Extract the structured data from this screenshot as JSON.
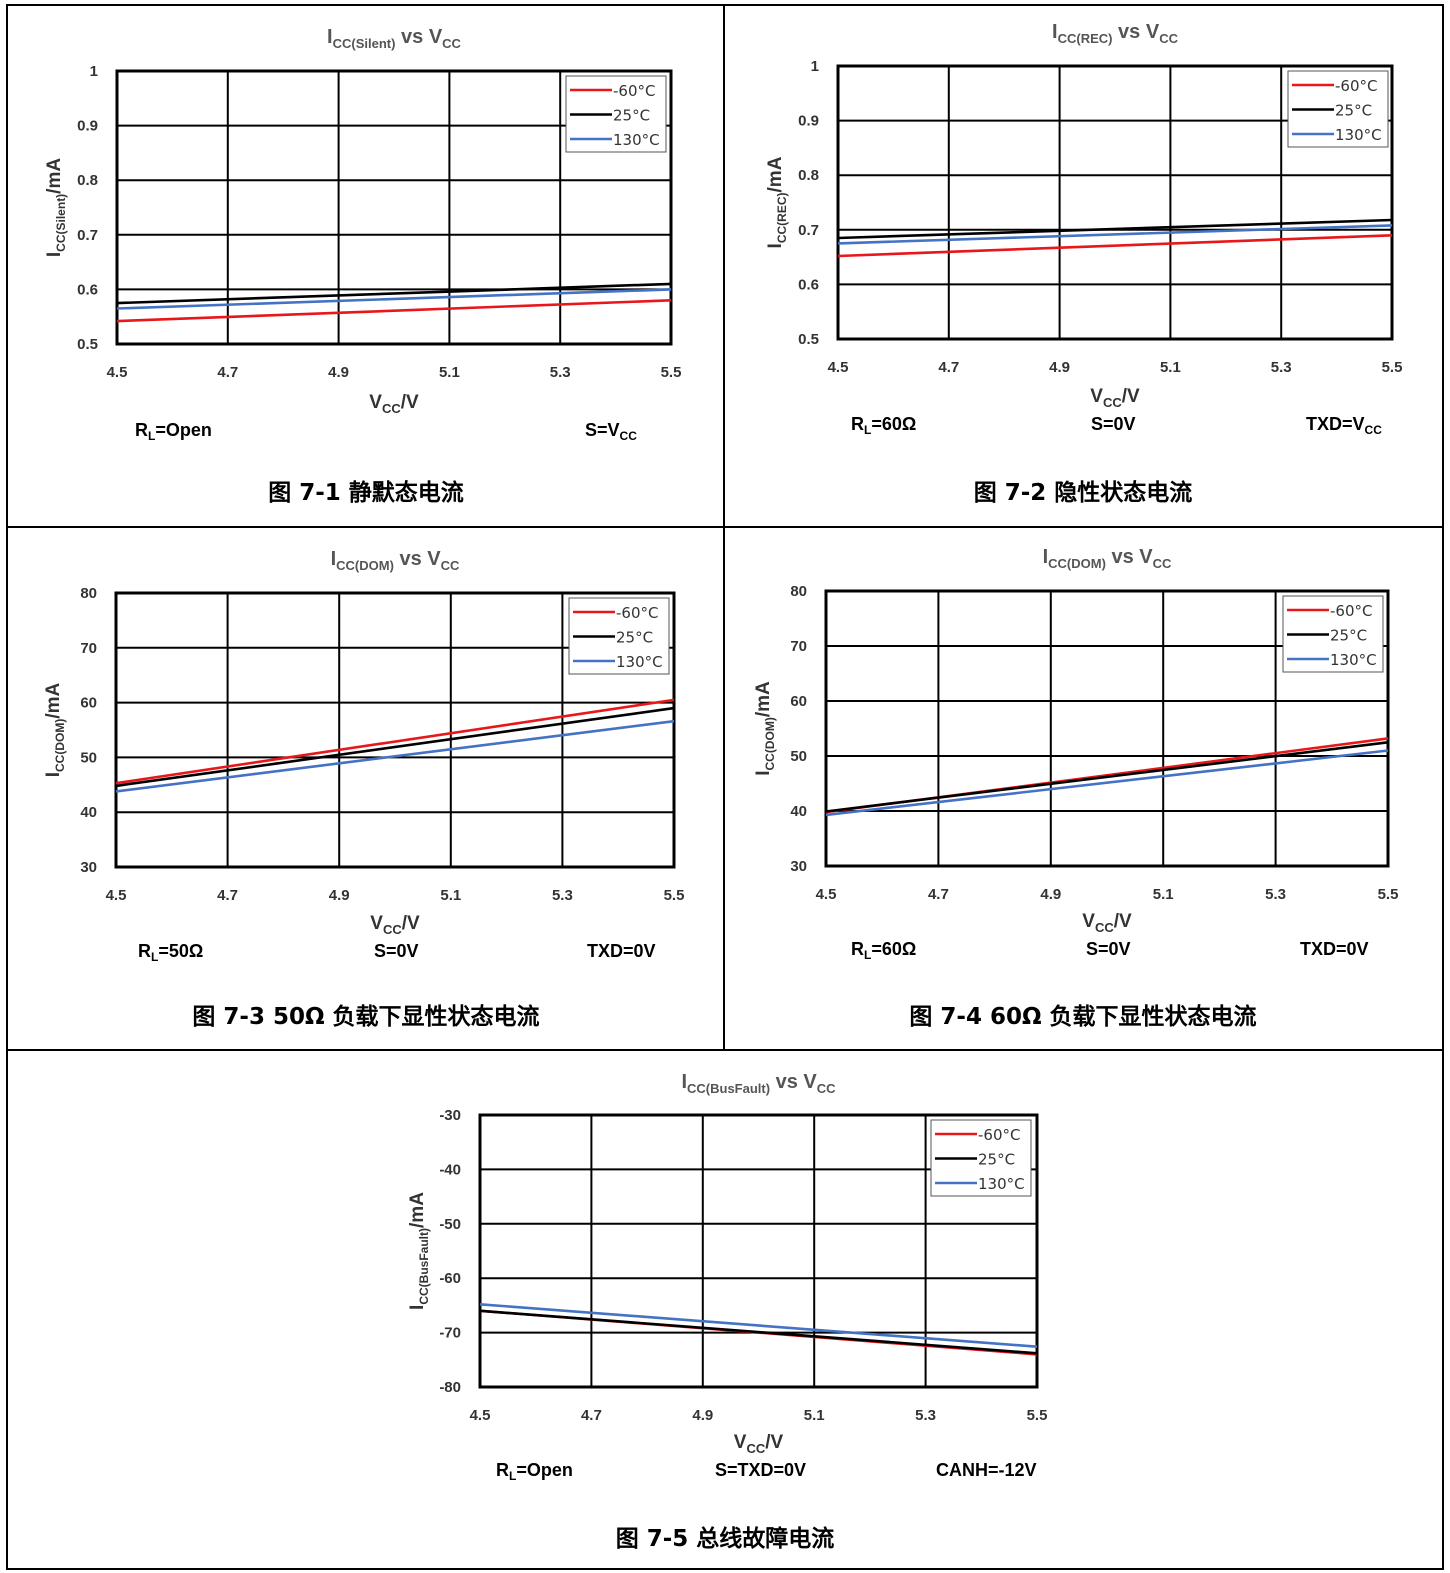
{
  "colors": {
    "series_60": "#e8171b",
    "series_25": "#000000",
    "series_130": "#4472c4"
  },
  "chart_data": [
    {
      "type": "line",
      "title": {
        "main": "I",
        "sub": "CC(Silent)",
        "mid": " vs V",
        "sub2": "CC"
      },
      "xlabel": {
        "main": "V",
        "sub": "CC",
        "tail": "/V"
      },
      "ylabel": {
        "main": "I",
        "sub": "CC(Silent)",
        "tail": "/mA"
      },
      "xlim": [
        4.5,
        5.5
      ],
      "ylim": [
        0.5,
        1.0
      ],
      "x_ticks": [
        "4.5",
        "4.7",
        "4.9",
        "5.1",
        "5.3",
        "5.5"
      ],
      "y_ticks": [
        "0.5",
        "0.6",
        "0.7",
        "0.8",
        "0.9",
        "1"
      ],
      "grid": true,
      "legend": "top-right",
      "series": [
        {
          "name": "-60°C",
          "color": "#e8171b",
          "x": [
            4.5,
            5.5
          ],
          "y": [
            0.542,
            0.58
          ]
        },
        {
          "name": "25°C",
          "color": "#000000",
          "x": [
            4.5,
            5.5
          ],
          "y": [
            0.575,
            0.61
          ]
        },
        {
          "name": "130°C",
          "color": "#4472c4",
          "x": [
            4.5,
            5.5
          ],
          "y": [
            0.565,
            0.6
          ]
        }
      ],
      "notes": [
        {
          "main": "R",
          "sub": "L",
          "tail": "=Open"
        },
        {
          "main": "S=V",
          "sub": "CC",
          "tail": ""
        }
      ],
      "caption": "图 7-1 静默态电流"
    },
    {
      "type": "line",
      "title": {
        "main": "I",
        "sub": "CC(REC)",
        "mid": " vs V",
        "sub2": "CC"
      },
      "xlabel": {
        "main": "V",
        "sub": "CC",
        "tail": "/V"
      },
      "ylabel": {
        "main": "I",
        "sub": "CC(REC)",
        "tail": "/mA"
      },
      "xlim": [
        4.5,
        5.5
      ],
      "ylim": [
        0.5,
        1.0
      ],
      "x_ticks": [
        "4.5",
        "4.7",
        "4.9",
        "5.1",
        "5.3",
        "5.5"
      ],
      "y_ticks": [
        "0.5",
        "0.6",
        "0.7",
        "0.8",
        "0.9",
        "1"
      ],
      "grid": true,
      "legend": "top-right",
      "series": [
        {
          "name": "-60°C",
          "color": "#e8171b",
          "x": [
            4.5,
            5.5
          ],
          "y": [
            0.652,
            0.69
          ]
        },
        {
          "name": "25°C",
          "color": "#000000",
          "x": [
            4.5,
            5.5
          ],
          "y": [
            0.685,
            0.718
          ]
        },
        {
          "name": "130°C",
          "color": "#4472c4",
          "x": [
            4.5,
            5.5
          ],
          "y": [
            0.675,
            0.708
          ]
        }
      ],
      "notes": [
        {
          "main": "R",
          "sub": "L",
          "tail": "=60Ω"
        },
        {
          "main": "S=0V",
          "sub": "",
          "tail": ""
        },
        {
          "main": "TXD=V",
          "sub": "CC",
          "tail": ""
        }
      ],
      "caption": "图 7-2 隐性状态电流"
    },
    {
      "type": "line",
      "title": {
        "main": "I",
        "sub": "CC(DOM)",
        "mid": " vs V",
        "sub2": "CC"
      },
      "xlabel": {
        "main": "V",
        "sub": "CC",
        "tail": "/V"
      },
      "ylabel": {
        "main": "I",
        "sub": "CC(DOM)",
        "tail": "/mA"
      },
      "xlim": [
        4.5,
        5.5
      ],
      "ylim": [
        30,
        80
      ],
      "x_ticks": [
        "4.5",
        "4.7",
        "4.9",
        "5.1",
        "5.3",
        "5.5"
      ],
      "y_ticks": [
        "30",
        "40",
        "50",
        "60",
        "70",
        "80"
      ],
      "grid": true,
      "legend": "top-right",
      "series": [
        {
          "name": "-60°C",
          "color": "#e8171b",
          "x": [
            4.5,
            5.5
          ],
          "y": [
            45.3,
            60.5
          ]
        },
        {
          "name": "25°C",
          "color": "#000000",
          "x": [
            4.5,
            5.5
          ],
          "y": [
            44.8,
            59.0
          ]
        },
        {
          "name": "130°C",
          "color": "#4472c4",
          "x": [
            4.5,
            5.5
          ],
          "y": [
            43.8,
            56.6
          ]
        }
      ],
      "notes": [
        {
          "main": "R",
          "sub": "L",
          "tail": "=50Ω"
        },
        {
          "main": "S=0V",
          "sub": "",
          "tail": ""
        },
        {
          "main": "TXD=0V",
          "sub": "",
          "tail": ""
        }
      ],
      "caption": "图 7-3 50Ω 负载下显性状态电流"
    },
    {
      "type": "line",
      "title": {
        "main": "I",
        "sub": "CC(DOM)",
        "mid": " vs V",
        "sub2": "CC"
      },
      "xlabel": {
        "main": "V",
        "sub": "CC",
        "tail": "/V"
      },
      "ylabel": {
        "main": "I",
        "sub": "CC(DOM)",
        "tail": "/mA"
      },
      "xlim": [
        4.5,
        5.5
      ],
      "ylim": [
        30,
        80
      ],
      "x_ticks": [
        "4.5",
        "4.7",
        "4.9",
        "5.1",
        "5.3",
        "5.5"
      ],
      "y_ticks": [
        "30",
        "40",
        "50",
        "60",
        "70",
        "80"
      ],
      "grid": true,
      "legend": "top-right",
      "series": [
        {
          "name": "-60°C",
          "color": "#e8171b",
          "x": [
            4.5,
            5.5
          ],
          "y": [
            39.8,
            53.2
          ]
        },
        {
          "name": "25°C",
          "color": "#000000",
          "x": [
            4.5,
            5.5
          ],
          "y": [
            39.9,
            52.5
          ]
        },
        {
          "name": "130°C",
          "color": "#4472c4",
          "x": [
            4.5,
            5.5
          ],
          "y": [
            39.3,
            51.0
          ]
        }
      ],
      "notes": [
        {
          "main": "R",
          "sub": "L",
          "tail": "=60Ω"
        },
        {
          "main": "S=0V",
          "sub": "",
          "tail": ""
        },
        {
          "main": "TXD=0V",
          "sub": "",
          "tail": ""
        }
      ],
      "caption": "图 7-4 60Ω 负载下显性状态电流"
    },
    {
      "type": "line",
      "title": {
        "main": "I",
        "sub": "CC(BusFault)",
        "mid": " vs V",
        "sub2": "CC"
      },
      "xlabel": {
        "main": "V",
        "sub": "CC",
        "tail": "/V"
      },
      "ylabel": {
        "main": "I",
        "sub": "CC(BusFault)",
        "tail": "/mA"
      },
      "xlim": [
        4.5,
        5.5
      ],
      "ylim": [
        -80,
        -30
      ],
      "x_ticks": [
        "4.5",
        "4.7",
        "4.9",
        "5.1",
        "5.3",
        "5.5"
      ],
      "y_ticks": [
        "-80",
        "-70",
        "-60",
        "-50",
        "-40",
        "-30"
      ],
      "grid": true,
      "legend": "top-right",
      "series": [
        {
          "name": "-60°C",
          "color": "#e8171b",
          "x": [
            4.5,
            5.5
          ],
          "y": [
            -66.0,
            -74.0
          ]
        },
        {
          "name": "25°C",
          "color": "#000000",
          "x": [
            4.5,
            5.5
          ],
          "y": [
            -66.0,
            -73.8
          ]
        },
        {
          "name": "130°C",
          "color": "#4472c4",
          "x": [
            4.5,
            5.5
          ],
          "y": [
            -64.8,
            -72.6
          ]
        }
      ],
      "notes": [
        {
          "main": "R",
          "sub": "L",
          "tail": "=Open"
        },
        {
          "main": "S=TXD=0V",
          "sub": "",
          "tail": ""
        },
        {
          "main": "CANH=-12V",
          "sub": "",
          "tail": ""
        }
      ],
      "caption": "图 7-5 总线故障电流"
    }
  ]
}
